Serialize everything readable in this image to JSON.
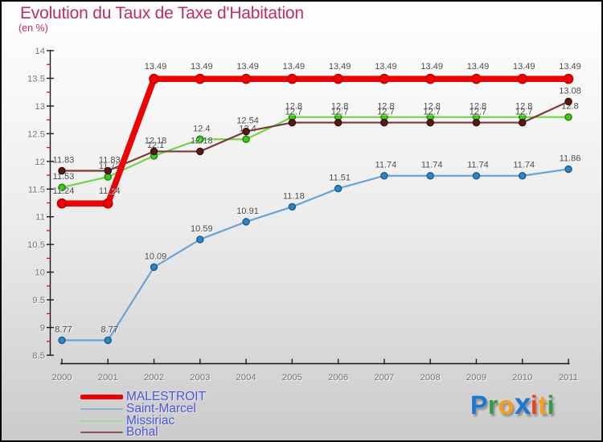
{
  "title": "Evolution du Taux de Taxe d'Habitation",
  "subtitle": "(en %)",
  "colors": {
    "title": "#be2d5f",
    "axis": "#1a1a1a",
    "minor_tick": "#e01010",
    "tick_label": "#767676",
    "point_label": "#4b4b4b",
    "legend_text": "#4a55dd"
  },
  "chart_data": {
    "type": "line",
    "title": "Evolution du Taux de Taxe d'Habitation",
    "subtitle": "(en %)",
    "xlabel": "",
    "ylabel": "en %",
    "x": [
      2000,
      2001,
      2002,
      2003,
      2004,
      2005,
      2006,
      2007,
      2008,
      2009,
      2010,
      2011
    ],
    "x_tick_labels": [
      "2000",
      "2001",
      "2002",
      "2003",
      "2004",
      "2005",
      "2006",
      "2007",
      "2008",
      "2009",
      "2010",
      "2011"
    ],
    "ylim": [
      8.5,
      14
    ],
    "y_ticks": [
      {
        "v": 14,
        "label": "14"
      },
      {
        "v": 13.5,
        "label": "13.5"
      },
      {
        "v": 13,
        "label": "13"
      },
      {
        "v": 12.5,
        "label": "12.5"
      },
      {
        "v": 12,
        "label": "12"
      },
      {
        "v": 11.5,
        "label": "11.5"
      },
      {
        "v": 11,
        "label": "11"
      },
      {
        "v": 10.5,
        "label": "10.5"
      },
      {
        "v": 10,
        "label": "10"
      },
      {
        "v": 9.5,
        "label": "9.5"
      },
      {
        "v": 9,
        "label": "9"
      },
      {
        "v": 8.5,
        "label": "8.5"
      }
    ],
    "y_minor_ticks": [
      13.75,
      13.25,
      12.75,
      12.25,
      11.75,
      11.25,
      10.75,
      10.25,
      9.75,
      9.25,
      8.75
    ],
    "grid": false,
    "legend_position": "bottom-left",
    "series": [
      {
        "name": "Saint-Marcel",
        "values": [
          8.77,
          8.77,
          10.09,
          10.59,
          10.91,
          11.18,
          11.51,
          11.74,
          11.74,
          11.74,
          11.74,
          11.86
        ],
        "point_labels": [
          "8.77",
          "8.77",
          "10.09",
          "10.59",
          "10.91",
          "11.18",
          "11.51",
          "11.74",
          "11.74",
          "11.74",
          "11.74",
          "11.86"
        ],
        "line_color": "#6ba3d6",
        "line_width": 2.2,
        "dot_color": "#2e86c4",
        "dot_edge": "#1f5e8a",
        "dot_radius": 4,
        "label_offset": 10
      },
      {
        "name": "Missiriac",
        "values": [
          11.53,
          11.72,
          12.1,
          12.4,
          12.4,
          12.8,
          12.8,
          12.8,
          12.8,
          12.8,
          12.8,
          12.8
        ],
        "point_labels": [
          "11.53",
          "11.72",
          "12.1",
          "12.4",
          "12.4",
          "12.8",
          "12.8",
          "12.8",
          "12.8",
          "12.8",
          "12.8",
          "12.8"
        ],
        "line_color": "#74d24b",
        "line_width": 2.2,
        "dot_color": "#3ecb17",
        "dot_edge": "#27830e",
        "dot_radius": 4,
        "label_offset": 10
      },
      {
        "name": "Bohal",
        "values": [
          11.83,
          11.83,
          12.18,
          12.18,
          12.54,
          12.7,
          12.7,
          12.7,
          12.7,
          12.7,
          12.7,
          13.08
        ],
        "point_labels": [
          "11.83",
          "11.83",
          "12.18",
          "12.18",
          "12.54",
          "12.7",
          "12.7",
          "12.7",
          "12.7",
          "12.7",
          "12.7",
          "13.08"
        ],
        "line_color": "#7b3b38",
        "line_width": 2.2,
        "dot_color": "#581817",
        "dot_edge": "#38100f",
        "dot_radius": 4,
        "label_offset": 10
      },
      {
        "name": "MALESTROIT",
        "values": [
          11.24,
          11.24,
          13.49,
          13.49,
          13.49,
          13.49,
          13.49,
          13.49,
          13.49,
          13.49,
          13.49,
          13.49
        ],
        "point_labels": [
          "11.24",
          "11.24",
          "13.49",
          "13.49",
          "13.49",
          "13.49",
          "13.49",
          "13.49",
          "13.49",
          "13.49",
          "13.49",
          "13.49"
        ],
        "line_color": "#ec0404",
        "line_width": 7.6,
        "dot_color": "#ec0404",
        "dot_edge": "#c30000",
        "dot_radius": 5.6,
        "label_offset": 12
      }
    ]
  },
  "legend": {
    "items": [
      {
        "label": "MALESTROIT",
        "swatch_color": "#ec0404",
        "swatch_height": 6
      },
      {
        "label": "Saint-Marcel",
        "swatch_color": "#8cb4d2",
        "swatch_height": 2
      },
      {
        "label": "Missiriac",
        "swatch_color": "#a8d88e",
        "swatch_height": 2
      },
      {
        "label": "Bohal",
        "swatch_color": "#8a5250",
        "swatch_height": 2
      }
    ]
  },
  "logo": {
    "word": "Proxiti",
    "letters": [
      {
        "ch": "P",
        "color": "#1a78d2",
        "big": false
      },
      {
        "ch": "r",
        "color": "#2f9e41",
        "big": false
      },
      {
        "ch": "o",
        "color": "#f59e1b",
        "big": false
      },
      {
        "ch": "x",
        "color": "#1a78d2",
        "big": true
      },
      {
        "ch": "i",
        "color": "#e8431f",
        "big": false
      },
      {
        "ch": "t",
        "color": "#f59e1b",
        "big": false
      },
      {
        "ch": "i",
        "color": "#2f9e41",
        "big": false
      }
    ]
  }
}
